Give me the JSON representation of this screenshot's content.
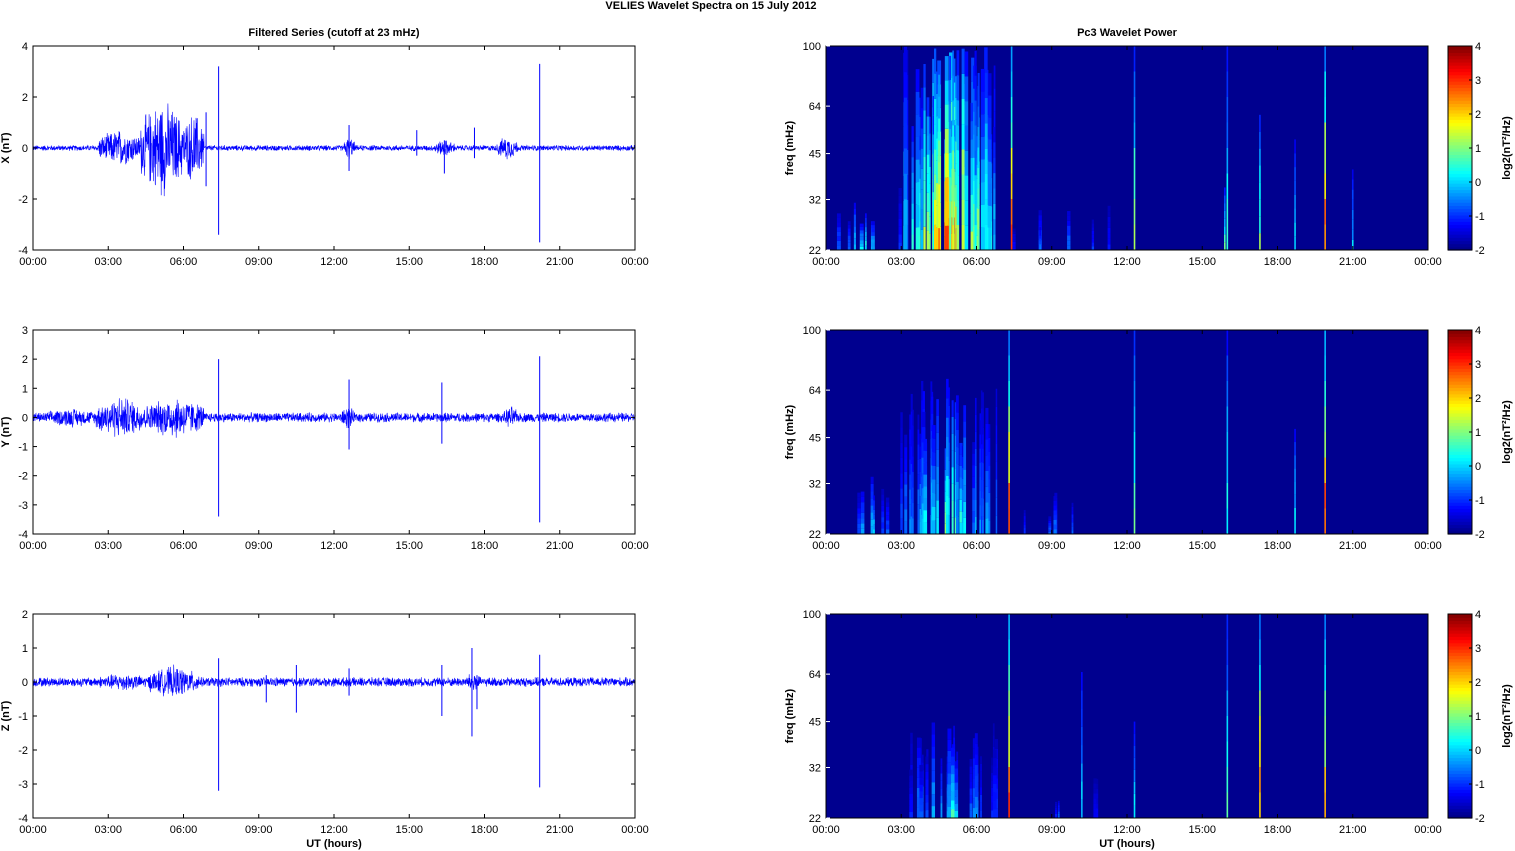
{
  "figure": {
    "title": "VELIES Wavelet Spectra on 15 July      2012",
    "left_column_title": "Filtered Series (cutoff at 23 mHz)",
    "right_column_title": "Pc3 Wavelet Power",
    "xlabel": "UT (hours)"
  },
  "colors": {
    "trace": "#0000ff",
    "background": "#00008f",
    "axis": "#000000",
    "colormap": "jet"
  },
  "chart_data": [
    {
      "type": "line",
      "component": "X",
      "ylabel": "X (nT)",
      "xlim_hours": [
        0,
        24
      ],
      "xticks": [
        "00:00",
        "03:00",
        "06:00",
        "09:00",
        "12:00",
        "15:00",
        "18:00",
        "21:00",
        "00:00"
      ],
      "ylim": [
        -4,
        4
      ],
      "yticks": [
        "-4",
        "-2",
        "0",
        "2",
        "4"
      ],
      "noise": {
        "base": 0.08,
        "scale": 0.3
      },
      "activity_envelope": [
        {
          "start": 2.6,
          "end": 4.3,
          "amp": 0.55
        },
        {
          "start": 4.3,
          "end": 6.0,
          "amp": 1.45
        },
        {
          "start": 6.0,
          "end": 6.8,
          "amp": 1.1
        },
        {
          "start": 12.4,
          "end": 12.8,
          "amp": 0.35
        },
        {
          "start": 16.0,
          "end": 16.8,
          "amp": 0.25
        },
        {
          "start": 18.5,
          "end": 19.3,
          "amp": 0.35
        }
      ],
      "spikes": [
        {
          "t": 6.9,
          "min": -1.5,
          "max": 1.4
        },
        {
          "t": 7.4,
          "min": -3.4,
          "max": 3.2
        },
        {
          "t": 12.6,
          "min": -0.9,
          "max": 0.9
        },
        {
          "t": 15.3,
          "min": -0.3,
          "max": 0.7
        },
        {
          "t": 16.4,
          "min": -1.0,
          "max": 0.3
        },
        {
          "t": 17.6,
          "min": -0.4,
          "max": 0.8
        },
        {
          "t": 20.2,
          "min": -3.7,
          "max": 3.3
        }
      ]
    },
    {
      "type": "heatmap",
      "component": "X",
      "ylabel": "freq (mHz)",
      "yticks": [
        "22",
        "32",
        "45",
        "64",
        "100"
      ],
      "xticks": [
        "00:00",
        "03:00",
        "06:00",
        "09:00",
        "12:00",
        "15:00",
        "18:00",
        "21:00",
        "00:00"
      ],
      "colorbar_label": "log2(nT²/Hz)",
      "colorbar_ticks": [
        "-2",
        "-1",
        "0",
        "1",
        "2",
        "3",
        "4"
      ],
      "clim": [
        -2,
        4
      ],
      "features": [
        {
          "t_start": 3.0,
          "t_end": 6.8,
          "peak": 3.8,
          "freq_top": 100,
          "count": 55
        },
        {
          "t_start": 0.5,
          "t_end": 3.0,
          "peak": 1.4,
          "freq_top": 35,
          "count": 8
        },
        {
          "t_start": 7.0,
          "t_end": 11.5,
          "peak": 0.2,
          "freq_top": 32,
          "count": 6
        }
      ],
      "lines": [
        {
          "t": 7.4,
          "peak": 3.5,
          "freq_top": 100
        },
        {
          "t": 12.3,
          "peak": 1.6,
          "freq_top": 100
        },
        {
          "t": 15.9,
          "peak": 1.0,
          "freq_top": 35
        },
        {
          "t": 16.0,
          "peak": 0.8,
          "freq_top": 100
        },
        {
          "t": 17.3,
          "peak": 1.5,
          "freq_top": 60
        },
        {
          "t": 18.7,
          "peak": 0.6,
          "freq_top": 50
        },
        {
          "t": 19.9,
          "peak": 3.5,
          "freq_top": 100
        },
        {
          "t": 21.0,
          "peak": 0.2,
          "freq_top": 40
        }
      ]
    },
    {
      "type": "line",
      "component": "Y",
      "ylabel": "Y (nT)",
      "xlim_hours": [
        0,
        24
      ],
      "xticks": [
        "00:00",
        "03:00",
        "06:00",
        "09:00",
        "12:00",
        "15:00",
        "18:00",
        "21:00",
        "00:00"
      ],
      "ylim": [
        -4,
        3
      ],
      "yticks": [
        "-4",
        "-3",
        "-2",
        "-1",
        "0",
        "1",
        "2",
        "3"
      ],
      "noise": {
        "base": 0.12,
        "scale": 0.3
      },
      "activity_envelope": [
        {
          "start": 0.5,
          "end": 2.5,
          "amp": 0.25
        },
        {
          "start": 2.5,
          "end": 4.5,
          "amp": 0.55
        },
        {
          "start": 4.5,
          "end": 6.8,
          "amp": 0.55
        },
        {
          "start": 12.3,
          "end": 12.8,
          "amp": 0.3
        },
        {
          "start": 18.8,
          "end": 19.3,
          "amp": 0.3
        }
      ],
      "spikes": [
        {
          "t": 7.4,
          "min": -3.4,
          "max": 2.0
        },
        {
          "t": 12.6,
          "min": -1.1,
          "max": 1.3
        },
        {
          "t": 16.3,
          "min": -0.9,
          "max": 1.2
        },
        {
          "t": 20.2,
          "min": -3.6,
          "max": 2.1
        }
      ]
    },
    {
      "type": "heatmap",
      "component": "Y",
      "ylabel": "freq (mHz)",
      "yticks": [
        "22",
        "32",
        "45",
        "64",
        "100"
      ],
      "xticks": [
        "00:00",
        "03:00",
        "06:00",
        "09:00",
        "12:00",
        "15:00",
        "18:00",
        "21:00",
        "00:00"
      ],
      "colorbar_label": "log2(nT²/Hz)",
      "colorbar_ticks": [
        "-2",
        "-1",
        "0",
        "1",
        "2",
        "3",
        "4"
      ],
      "clim": [
        -2,
        4
      ],
      "features": [
        {
          "t_start": 3.0,
          "t_end": 6.8,
          "peak": 1.6,
          "freq_top": 70,
          "count": 40
        },
        {
          "t_start": 1.0,
          "t_end": 2.5,
          "peak": 0.8,
          "freq_top": 35,
          "count": 6
        },
        {
          "t_start": 7.5,
          "t_end": 11.0,
          "peak": 0.0,
          "freq_top": 30,
          "count": 5
        }
      ],
      "lines": [
        {
          "t": 7.3,
          "peak": 3.5,
          "freq_top": 100
        },
        {
          "t": 12.3,
          "peak": 1.5,
          "freq_top": 100
        },
        {
          "t": 16.0,
          "peak": 0.8,
          "freq_top": 100
        },
        {
          "t": 18.7,
          "peak": 0.6,
          "freq_top": 48
        },
        {
          "t": 19.9,
          "peak": 3.5,
          "freq_top": 100
        }
      ]
    },
    {
      "type": "line",
      "component": "Z",
      "ylabel": "Z (nT)",
      "xlim_hours": [
        0,
        24
      ],
      "xticks": [
        "00:00",
        "03:00",
        "06:00",
        "09:00",
        "12:00",
        "15:00",
        "18:00",
        "21:00",
        "00:00"
      ],
      "ylim": [
        -4,
        2
      ],
      "yticks": [
        "-4",
        "-3",
        "-2",
        "-1",
        "0",
        "1",
        "2"
      ],
      "noise": {
        "base": 0.1,
        "scale": 0.3
      },
      "activity_envelope": [
        {
          "start": 2.5,
          "end": 4.6,
          "amp": 0.2
        },
        {
          "start": 4.6,
          "end": 6.6,
          "amp": 0.35
        },
        {
          "start": 17.3,
          "end": 17.8,
          "amp": 0.25
        }
      ],
      "spikes": [
        {
          "t": 7.4,
          "min": -3.2,
          "max": 0.7
        },
        {
          "t": 9.3,
          "min": -0.6,
          "max": 0.2
        },
        {
          "t": 10.5,
          "min": -0.9,
          "max": 0.5
        },
        {
          "t": 12.6,
          "min": -0.4,
          "max": 0.4
        },
        {
          "t": 16.3,
          "min": -1.0,
          "max": 0.5
        },
        {
          "t": 17.5,
          "min": -1.6,
          "max": 1.0
        },
        {
          "t": 17.7,
          "min": -0.8,
          "max": 0.2
        },
        {
          "t": 20.2,
          "min": -3.1,
          "max": 0.8
        }
      ]
    },
    {
      "type": "heatmap",
      "component": "Z",
      "ylabel": "freq (mHz)",
      "yticks": [
        "22",
        "32",
        "45",
        "64",
        "100"
      ],
      "xticks": [
        "00:00",
        "03:00",
        "06:00",
        "09:00",
        "12:00",
        "15:00",
        "18:00",
        "21:00",
        "00:00"
      ],
      "colorbar_label": "log2(nT²/Hz)",
      "colorbar_ticks": [
        "-2",
        "-1",
        "0",
        "1",
        "2",
        "3",
        "4"
      ],
      "clim": [
        -2,
        4
      ],
      "features": [
        {
          "t_start": 3.3,
          "t_end": 6.8,
          "peak": 0.9,
          "freq_top": 45,
          "count": 28
        },
        {
          "t_start": 7.5,
          "t_end": 11.0,
          "peak": -0.3,
          "freq_top": 30,
          "count": 4
        }
      ],
      "lines": [
        {
          "t": 7.3,
          "peak": 3.5,
          "freq_top": 100
        },
        {
          "t": 10.2,
          "peak": 0.3,
          "freq_top": 65
        },
        {
          "t": 12.3,
          "peak": 0.5,
          "freq_top": 45
        },
        {
          "t": 16.0,
          "peak": 1.0,
          "freq_top": 100
        },
        {
          "t": 17.3,
          "peak": 3.2,
          "freq_top": 100
        },
        {
          "t": 19.9,
          "peak": 3.0,
          "freq_top": 100
        }
      ]
    }
  ]
}
